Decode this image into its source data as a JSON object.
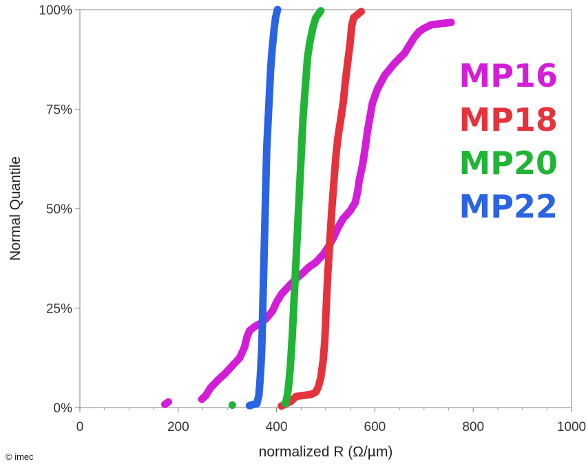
{
  "copyright": "© imec",
  "chart_data": {
    "type": "scatter",
    "xlabel": "normalized R (Ω/µm)",
    "ylabel": "Normal Quantile",
    "xlim": [
      0,
      1000
    ],
    "ylim": [
      0,
      100
    ],
    "x_ticks": [
      {
        "value": 0,
        "label": "0"
      },
      {
        "value": 200,
        "label": "200"
      },
      {
        "value": 400,
        "label": "400"
      },
      {
        "value": 600,
        "label": "600"
      },
      {
        "value": 800,
        "label": "800"
      },
      {
        "value": 1000,
        "label": "1000"
      }
    ],
    "y_ticks": [
      {
        "value": 0,
        "label": "0%"
      },
      {
        "value": 25,
        "label": "25%"
      },
      {
        "value": 50,
        "label": "50%"
      },
      {
        "value": 75,
        "label": "75%"
      },
      {
        "value": 100,
        "label": "100%"
      }
    ],
    "grid": false,
    "legend_position": "right",
    "series": [
      {
        "name": "MP16",
        "color": "#d21ed7",
        "points": [
          [
            173,
            0.8
          ],
          [
            180,
            1.4
          ],
          [
            248,
            2.1
          ],
          [
            256,
            3.0
          ],
          [
            266,
            5.0
          ],
          [
            280,
            6.8
          ],
          [
            295,
            8.5
          ],
          [
            310,
            10.5
          ],
          [
            325,
            12.5
          ],
          [
            335,
            15.2
          ],
          [
            340,
            17.8
          ],
          [
            345,
            19.3
          ],
          [
            355,
            20.3
          ],
          [
            368,
            21.2
          ],
          [
            380,
            22.5
          ],
          [
            392,
            24.3
          ],
          [
            400,
            26.5
          ],
          [
            410,
            28.5
          ],
          [
            425,
            30.5
          ],
          [
            440,
            32.4
          ],
          [
            455,
            34.0
          ],
          [
            465,
            35.2
          ],
          [
            480,
            36.5
          ],
          [
            495,
            38.5
          ],
          [
            505,
            40.3
          ],
          [
            515,
            42.5
          ],
          [
            525,
            45.2
          ],
          [
            535,
            47.4
          ],
          [
            550,
            49.5
          ],
          [
            560,
            51.5
          ],
          [
            565,
            54.3
          ],
          [
            568,
            57.0
          ],
          [
            575,
            61.0
          ],
          [
            580,
            65.0
          ],
          [
            585,
            69.5
          ],
          [
            590,
            73.0
          ],
          [
            595,
            76.5
          ],
          [
            605,
            80.0
          ],
          [
            620,
            83.5
          ],
          [
            640,
            86.5
          ],
          [
            660,
            89.0
          ],
          [
            670,
            91.0
          ],
          [
            680,
            93.0
          ],
          [
            690,
            94.5
          ],
          [
            700,
            95.3
          ],
          [
            715,
            96.2
          ],
          [
            755,
            96.8
          ]
        ]
      },
      {
        "name": "MP18",
        "color": "#e5333e",
        "points": [
          [
            410,
            0.4
          ],
          [
            418,
            0.9
          ],
          [
            430,
            1.6
          ],
          [
            440,
            2.8
          ],
          [
            470,
            3.3
          ],
          [
            480,
            3.9
          ],
          [
            485,
            5.2
          ],
          [
            490,
            7.5
          ],
          [
            495,
            12.0
          ],
          [
            498,
            16.5
          ],
          [
            500,
            22.0
          ],
          [
            502,
            28.0
          ],
          [
            504,
            33.0
          ],
          [
            506,
            37.0
          ],
          [
            508,
            41.0
          ],
          [
            510,
            45.0
          ],
          [
            512,
            49.0
          ],
          [
            515,
            54.0
          ],
          [
            518,
            59.0
          ],
          [
            521,
            63.5
          ],
          [
            525,
            68.0
          ],
          [
            530,
            72.0
          ],
          [
            536,
            77.0
          ],
          [
            540,
            82.0
          ],
          [
            545,
            87.0
          ],
          [
            550,
            92.0
          ],
          [
            553,
            96.0
          ],
          [
            557,
            98.0
          ],
          [
            572,
            99.5
          ]
        ]
      },
      {
        "name": "MP20",
        "color": "#21b436",
        "points": [
          [
            310,
            0.6
          ],
          [
            418,
            1.0
          ],
          [
            422,
            3.0
          ],
          [
            425,
            6.0
          ],
          [
            428,
            10.0
          ],
          [
            430,
            14.0
          ],
          [
            432,
            18.0
          ],
          [
            434,
            23.0
          ],
          [
            436,
            28.0
          ],
          [
            438,
            33.0
          ],
          [
            440,
            38.0
          ],
          [
            442,
            43.0
          ],
          [
            444,
            48.0
          ],
          [
            446,
            53.0
          ],
          [
            448,
            58.0
          ],
          [
            450,
            63.0
          ],
          [
            452,
            68.0
          ],
          [
            454,
            73.0
          ],
          [
            457,
            78.0
          ],
          [
            460,
            83.0
          ],
          [
            463,
            88.0
          ],
          [
            468,
            92.0
          ],
          [
            474,
            95.5
          ],
          [
            480,
            98.0
          ],
          [
            490,
            99.7
          ]
        ]
      },
      {
        "name": "MP22",
        "color": "#2b64e2",
        "points": [
          [
            345,
            0.5
          ],
          [
            360,
            1.0
          ],
          [
            364,
            3.0
          ],
          [
            366,
            6.0
          ],
          [
            368,
            10.0
          ],
          [
            370,
            15.0
          ],
          [
            371,
            20.0
          ],
          [
            372,
            25.0
          ],
          [
            373,
            30.0
          ],
          [
            374,
            35.0
          ],
          [
            375,
            40.0
          ],
          [
            376,
            45.0
          ],
          [
            377,
            50.0
          ],
          [
            378,
            55.0
          ],
          [
            379,
            60.0
          ],
          [
            380,
            65.0
          ],
          [
            382,
            70.0
          ],
          [
            384,
            75.0
          ],
          [
            386,
            80.0
          ],
          [
            388,
            85.0
          ],
          [
            391,
            90.0
          ],
          [
            395,
            95.0
          ],
          [
            398,
            98.0
          ],
          [
            402,
            100.0
          ]
        ]
      }
    ]
  }
}
